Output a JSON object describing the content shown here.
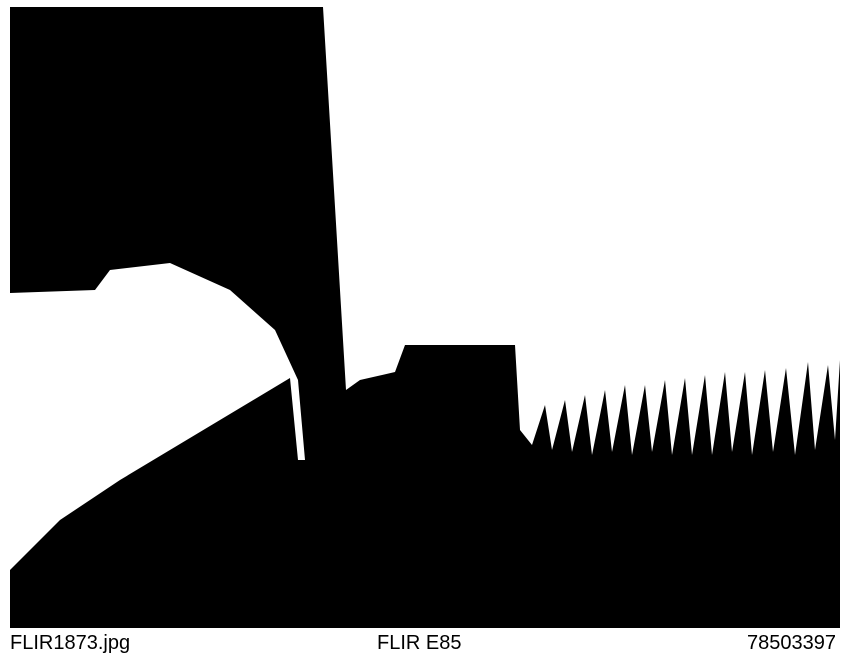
{
  "caption": {
    "file": "FLIR1873.jpg",
    "camera": "FLIR E85",
    "serial": "78503397"
  }
}
